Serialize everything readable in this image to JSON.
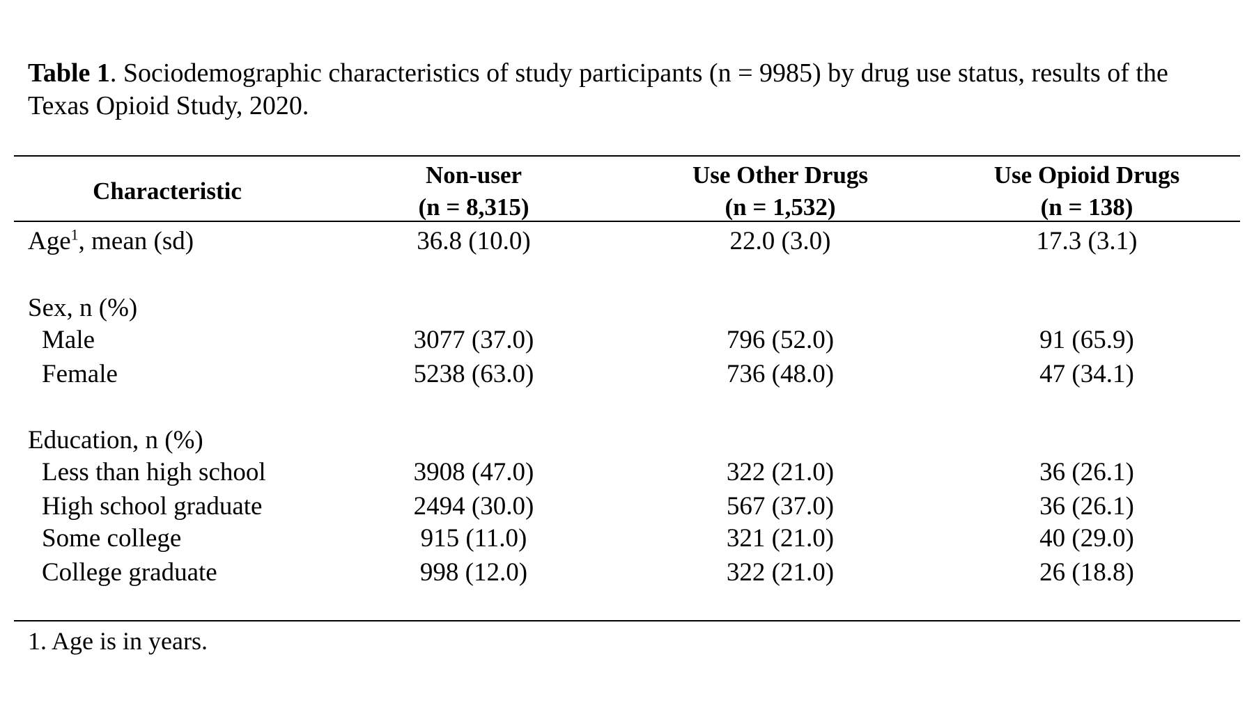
{
  "caption": {
    "label": "Table 1",
    "text": ". Sociodemographic characteristics of study participants (n = 9985) by drug use status, results of the Texas Opioid Study, 2020."
  },
  "header": {
    "characteristic": "Characteristic",
    "col1_name": "Non-user",
    "col1_n": "(n = 8,315)",
    "col2_name": "Use Other Drugs",
    "col2_n": "(n = 1,532)",
    "col3_name": "Use Opioid Drugs",
    "col3_n": "(n = 138)"
  },
  "rows": [
    {
      "label": "Age",
      "sup": "1",
      "label_suffix": ", mean (sd)",
      "c1": "36.8 (10.0)",
      "c2": "22.0 (3.0)",
      "c3": "17.3 (3.1)"
    },
    {
      "label": "Sex, n (%)"
    },
    {
      "label": "Male",
      "c1": "3077 (37.0)",
      "c2": "796 (52.0)",
      "c3": "91 (65.9)"
    },
    {
      "label": "Female",
      "c1": "5238 (63.0)",
      "c2": "736 (48.0)",
      "c3": "47 (34.1)"
    },
    {
      "label": "Education, n (%)"
    },
    {
      "label": "Less than high school",
      "c1": "3908 (47.0)",
      "c2": "322 (21.0)",
      "c3": "36 (26.1)"
    },
    {
      "label": "High school graduate",
      "c1": "2494 (30.0)",
      "c2": "567 (37.0)",
      "c3": "36 (26.1)"
    },
    {
      "label": "Some college",
      "c1": "915 (11.0)",
      "c2": "321 (21.0)",
      "c3": "40 (29.0)"
    },
    {
      "label": "College graduate",
      "c1": "998 (12.0)",
      "c2": "322 (21.0)",
      "c3": "26 (18.8)"
    }
  ],
  "footnote": "1. Age is in years."
}
